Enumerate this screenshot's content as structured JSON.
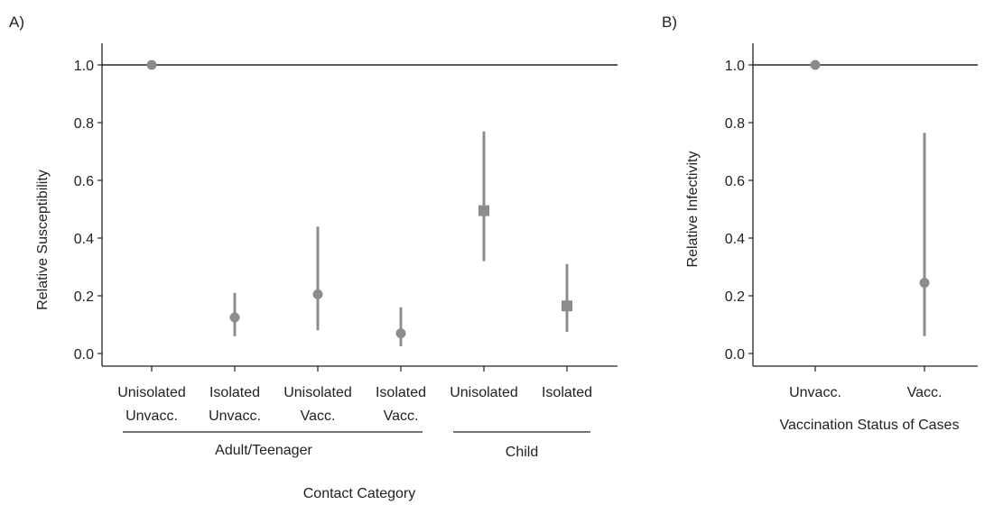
{
  "colors": {
    "marker": "#8c8c8c",
    "axis": "#222222"
  },
  "chart_data": [
    {
      "panel_label": "A)",
      "type": "scatter",
      "ylabel": "Relative Susceptibility",
      "xlabel": "Contact Category",
      "ylim": [
        -0.04,
        1.06
      ],
      "yticks": [
        "0.0",
        "0.2",
        "0.4",
        "0.6",
        "0.8",
        "1.0"
      ],
      "reference_line": 1.0,
      "categories": [
        {
          "line1": "Unisolated",
          "line2": "Unvacc.",
          "value": 1.0,
          "lower": null,
          "upper": null,
          "marker": "circle"
        },
        {
          "line1": "Isolated",
          "line2": "Unvacc.",
          "value": 0.125,
          "lower": 0.06,
          "upper": 0.21,
          "marker": "circle"
        },
        {
          "line1": "Unisolated",
          "line2": "Vacc.",
          "value": 0.205,
          "lower": 0.08,
          "upper": 0.44,
          "marker": "circle"
        },
        {
          "line1": "Isolated",
          "line2": "Vacc.",
          "value": 0.07,
          "lower": 0.025,
          "upper": 0.16,
          "marker": "circle"
        },
        {
          "line1": "Unisolated",
          "line2": "",
          "value": 0.495,
          "lower": 0.32,
          "upper": 0.77,
          "marker": "square"
        },
        {
          "line1": "Isolated",
          "line2": "",
          "value": 0.165,
          "lower": 0.075,
          "upper": 0.31,
          "marker": "square"
        }
      ],
      "groups": [
        {
          "label": "Adult/Teenager"
        },
        {
          "label": "Child"
        }
      ]
    },
    {
      "panel_label": "B)",
      "type": "scatter",
      "ylabel": "Relative Infectivity",
      "xlabel": "Vaccination Status of Cases",
      "ylim": [
        -0.04,
        1.06
      ],
      "yticks": [
        "0.0",
        "0.2",
        "0.4",
        "0.6",
        "0.8",
        "1.0"
      ],
      "reference_line": 1.0,
      "categories": [
        {
          "line1": "Unvacc.",
          "line2": "",
          "value": 1.0,
          "lower": null,
          "upper": null,
          "marker": "circle"
        },
        {
          "line1": "Vacc.",
          "line2": "",
          "value": 0.245,
          "lower": 0.06,
          "upper": 0.765,
          "marker": "circle"
        }
      ]
    }
  ]
}
